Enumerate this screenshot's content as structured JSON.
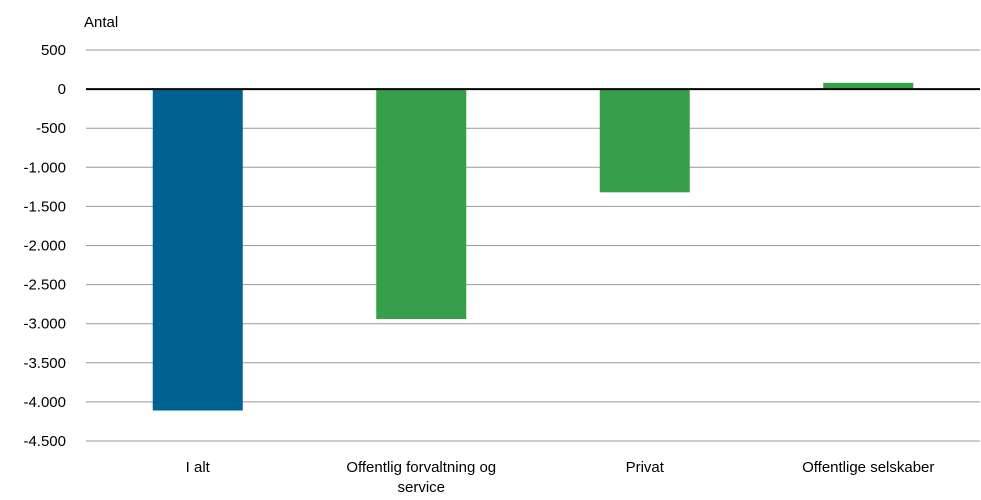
{
  "chart_data": {
    "type": "bar",
    "ylabel": "Antal",
    "categories": [
      "I alt",
      "Offentlig forvaltning og service",
      "Privat",
      "Offentlige selskaber"
    ],
    "category_label_lines": [
      [
        "I alt"
      ],
      [
        "Offentlig forvaltning og",
        "service"
      ],
      [
        "Privat"
      ],
      [
        "Offentlige selskaber"
      ]
    ],
    "values": [
      -4110,
      -2940,
      -1320,
      80
    ],
    "bar_colors": [
      "#006192",
      "#379e4a",
      "#379e4a",
      "#379e4a"
    ],
    "ylim": [
      -4500,
      500
    ],
    "yticks": [
      500,
      0,
      -500,
      -1000,
      -1500,
      -2000,
      -2500,
      -3000,
      -3500,
      -4000,
      -4500
    ],
    "ytick_labels": [
      "500",
      "0",
      "-500",
      "-1.000",
      "-1.500",
      "-2.000",
      "-2.500",
      "-3.000",
      "-3.500",
      "-4.000",
      "-4.500"
    ],
    "grid": true,
    "gridline_color": "#999999",
    "zero_line_color": "#000000"
  }
}
